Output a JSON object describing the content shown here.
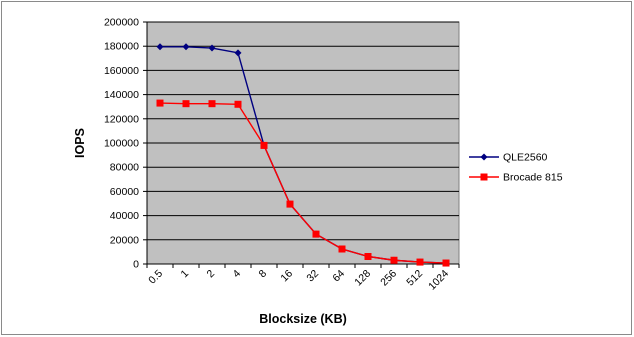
{
  "chart_data": {
    "type": "line",
    "title": "",
    "xlabel": "Blocksize (KB)",
    "ylabel": "IOPS",
    "categories": [
      "0.5",
      "1",
      "2",
      "4",
      "8",
      "16",
      "32",
      "64",
      "128",
      "256",
      "512",
      "1024"
    ],
    "ylim": [
      0,
      200000
    ],
    "yticks": [
      0,
      20000,
      40000,
      60000,
      80000,
      100000,
      120000,
      140000,
      160000,
      180000,
      200000
    ],
    "grid": true,
    "legend_position": "right",
    "plot_background": "#c0c0c0",
    "series": [
      {
        "name": "QLE2560",
        "color": "#000080",
        "marker": "diamond",
        "values": [
          179500,
          179500,
          178500,
          174500,
          98000,
          49500,
          24700,
          12400,
          6200,
          3100,
          1600,
          800
        ]
      },
      {
        "name": "Brocade 815",
        "color": "#ff0000",
        "marker": "square",
        "values": [
          133000,
          132500,
          132500,
          132000,
          98000,
          49500,
          24700,
          12400,
          6200,
          3100,
          1600,
          800
        ]
      }
    ]
  }
}
